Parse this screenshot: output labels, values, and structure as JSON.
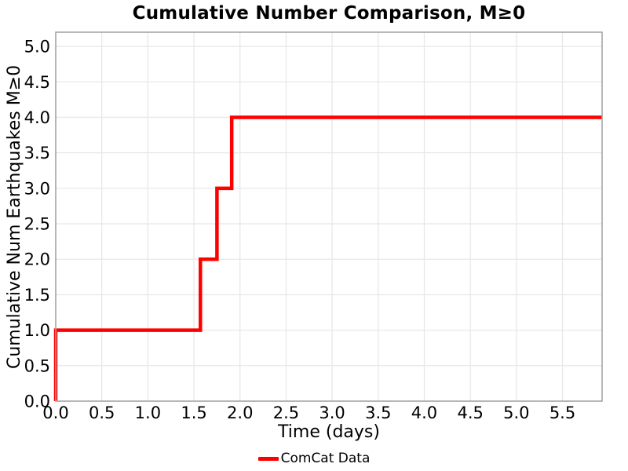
{
  "figure": {
    "background": "#ffffff"
  },
  "chart_data": {
    "type": "line",
    "subtype": "step",
    "title": "Cumulative Number Comparison, M≥0",
    "xlabel": "Time (days)",
    "ylabel": "Cumulative Num Earthquakes M≥0",
    "xlim": [
      0,
      5.93
    ],
    "ylim": [
      0,
      5.2
    ],
    "xticks": [
      0.0,
      0.5,
      1.0,
      1.5,
      2.0,
      2.5,
      3.0,
      3.5,
      4.0,
      4.5,
      5.0,
      5.5
    ],
    "yticks": [
      0.0,
      0.5,
      1.0,
      1.5,
      2.0,
      2.5,
      3.0,
      3.5,
      4.0,
      4.5,
      5.0
    ],
    "grid": true,
    "colors": {
      "grid": "#e8e8e8",
      "frame": "#a6a6a6",
      "text": "#000000",
      "line": "#ff0000"
    },
    "legend": {
      "position": "bottom-center",
      "entries": [
        {
          "label": "ComCat Data",
          "color": "#ff0000"
        }
      ]
    },
    "series": [
      {
        "name": "ComCat Data",
        "color": "#ff0000",
        "line_width": 4.5,
        "x": [
          0,
          0,
          1.57,
          1.57,
          1.75,
          1.75,
          1.91,
          1.91,
          5.93
        ],
        "y": [
          0,
          1,
          1,
          2,
          2,
          3,
          3,
          4,
          4
        ],
        "event_times_days": [
          0.0,
          1.57,
          1.75,
          1.91
        ],
        "final_count": 4
      }
    ]
  }
}
